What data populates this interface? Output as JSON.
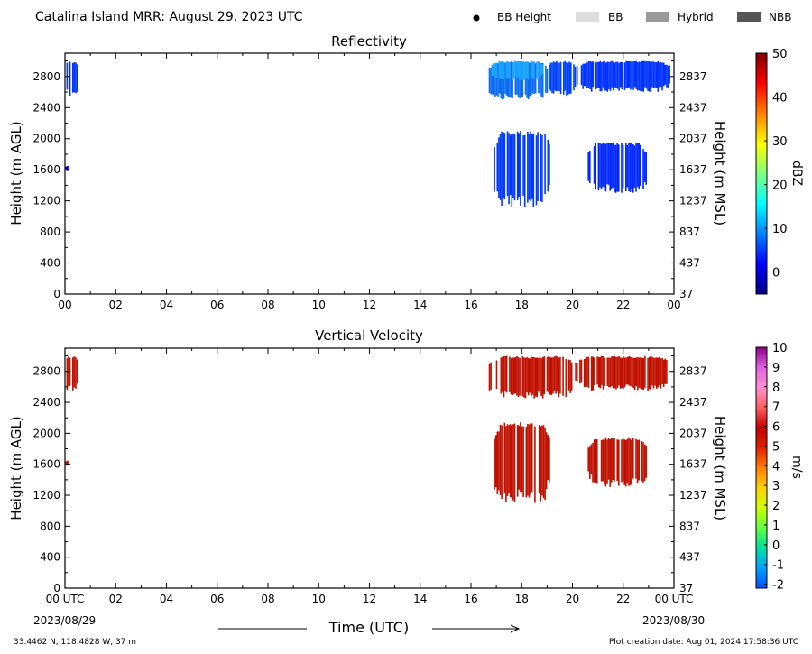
{
  "header": {
    "title": "Catalina Island MRR:  August 29, 2023 UTC",
    "legend": [
      {
        "label": "BB Height",
        "kind": "dot",
        "color": "#000000"
      },
      {
        "label": "BB",
        "kind": "box",
        "color": "#dddddd"
      },
      {
        "label": "Hybrid",
        "kind": "box",
        "color": "#999999"
      },
      {
        "label": "NBB",
        "kind": "box",
        "color": "#555555"
      }
    ]
  },
  "footer": {
    "time_label": "Time (UTC)",
    "start_date": "2023/08/29",
    "end_date": "2023/08/30",
    "location": "33.4462 N, 118.4828 W, 37 m",
    "creation": "Plot creation date: Aug 01, 2024 17:58:36 UTC"
  },
  "chart_data": [
    {
      "type": "heatmap",
      "title": "Reflectivity",
      "xlabel": "",
      "ylabel": "Height (m AGL)",
      "ylabel_right": "Height (m MSL)",
      "x_ticks": [
        "00",
        "02",
        "04",
        "06",
        "08",
        "10",
        "12",
        "14",
        "16",
        "18",
        "20",
        "22",
        "00"
      ],
      "xlim": [
        0,
        24
      ],
      "y_ticks": [
        0,
        400,
        800,
        1200,
        1600,
        2000,
        2400,
        2800
      ],
      "y_ticks_right": [
        "37",
        "437",
        "837",
        "1237",
        "1637",
        "2037",
        "2437",
        "2837"
      ],
      "ylim": [
        0,
        3100
      ],
      "colorbar": {
        "label": "dBZ",
        "ticks": [
          0,
          10,
          20,
          30,
          40,
          50
        ],
        "range": [
          -5,
          50
        ],
        "colors": [
          "#000080",
          "#0000ff",
          "#0080ff",
          "#00ffff",
          "#80ff80",
          "#ffff00",
          "#ff8000",
          "#ff0000",
          "#800000"
        ]
      },
      "regions": [
        {
          "t0": 0.0,
          "t1": 0.5,
          "h0": 2550,
          "h1": 3000,
          "color": "#0033ff"
        },
        {
          "t0": 0.0,
          "t1": 0.15,
          "h0": 1580,
          "h1": 1650,
          "color": "#0000cc"
        },
        {
          "t0": 16.7,
          "t1": 19.0,
          "h0": 2500,
          "h1": 3000,
          "color": "#0a6cf0"
        },
        {
          "t0": 16.8,
          "t1": 18.8,
          "h0": 2750,
          "h1": 3000,
          "color": "#1aa6ff"
        },
        {
          "t0": 19.0,
          "t1": 20.1,
          "h0": 2550,
          "h1": 3000,
          "color": "#0040ff"
        },
        {
          "t0": 20.1,
          "t1": 23.9,
          "h0": 2600,
          "h1": 3000,
          "color": "#0033ff"
        },
        {
          "t0": 16.9,
          "t1": 19.1,
          "h0": 1100,
          "h1": 2100,
          "color": "#0038ff"
        },
        {
          "t0": 20.6,
          "t1": 22.9,
          "h0": 1300,
          "h1": 1950,
          "color": "#0028ff"
        }
      ]
    },
    {
      "type": "heatmap",
      "title": "Vertical Velocity",
      "xlabel": "Time (UTC)",
      "ylabel": "Height (m AGL)",
      "ylabel_right": "Height (m MSL)",
      "x_ticks": [
        "00 UTC",
        "02",
        "04",
        "06",
        "08",
        "10",
        "12",
        "14",
        "16",
        "18",
        "20",
        "22",
        "00 UTC"
      ],
      "xlim": [
        0,
        24
      ],
      "y_ticks": [
        0,
        400,
        800,
        1200,
        1600,
        2000,
        2400,
        2800
      ],
      "y_ticks_right": [
        "37",
        "437",
        "837",
        "1237",
        "1637",
        "2037",
        "2437",
        "2837"
      ],
      "ylim": [
        0,
        3100
      ],
      "colorbar": {
        "label": "m/s",
        "ticks": [
          -2,
          -1,
          0,
          1,
          2,
          3,
          4,
          5,
          6,
          7,
          8,
          9,
          10
        ],
        "range": [
          -2.2,
          10
        ],
        "colors": [
          "#0050ff",
          "#00a0ff",
          "#00e0a0",
          "#60ff40",
          "#d0ff00",
          "#ffd000",
          "#ff8000",
          "#e02000",
          "#c00000",
          "#ff6060",
          "#ff90d0",
          "#e060e0",
          "#8a008a"
        ]
      },
      "regions": [
        {
          "t0": 0.0,
          "t1": 0.5,
          "h0": 2550,
          "h1": 3000,
          "color": "#c01000"
        },
        {
          "t0": 0.0,
          "t1": 0.15,
          "h0": 1580,
          "h1": 1650,
          "color": "#c01000"
        },
        {
          "t0": 16.7,
          "t1": 20.1,
          "h0": 2450,
          "h1": 3000,
          "color": "#c01000"
        },
        {
          "t0": 20.1,
          "t1": 23.9,
          "h0": 2550,
          "h1": 3000,
          "color": "#c01000"
        },
        {
          "t0": 16.9,
          "t1": 19.1,
          "h0": 1100,
          "h1": 2150,
          "color": "#c01000"
        },
        {
          "t0": 20.6,
          "t1": 22.9,
          "h0": 1300,
          "h1": 1950,
          "color": "#c01000"
        }
      ]
    }
  ]
}
